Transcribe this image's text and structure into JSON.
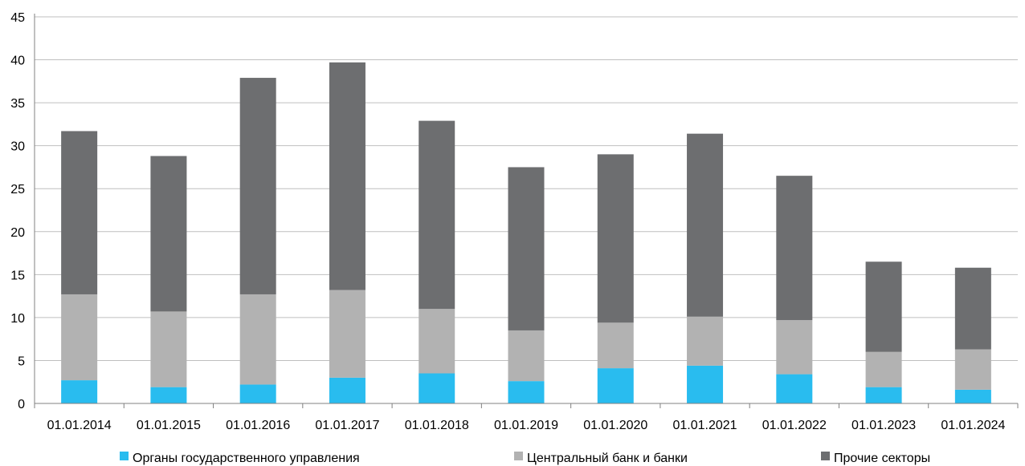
{
  "chart_data": {
    "type": "bar",
    "stacked": true,
    "title": "",
    "xlabel": "",
    "ylabel": "",
    "ylim": [
      0,
      45
    ],
    "y_ticks": [
      0,
      5,
      10,
      15,
      20,
      25,
      30,
      35,
      40,
      45
    ],
    "grid": true,
    "legend_position": "bottom",
    "categories": [
      "01.01.2014",
      "01.01.2015",
      "01.01.2016",
      "01.01.2017",
      "01.01.2018",
      "01.01.2019",
      "01.01.2020",
      "01.01.2021",
      "01.01.2022",
      "01.01.2023",
      "01.01.2024"
    ],
    "series": [
      {
        "name": "Органы государственного управления",
        "color": "#29BCEF",
        "values": [
          2.7,
          1.9,
          2.2,
          3.0,
          3.5,
          2.6,
          4.1,
          4.4,
          3.4,
          1.9,
          1.6
        ]
      },
      {
        "name": "Центральный банк и банки",
        "color": "#B2B2B2",
        "values": [
          10.0,
          8.8,
          10.5,
          10.2,
          7.5,
          5.9,
          5.3,
          5.7,
          6.3,
          4.1,
          4.7
        ]
      },
      {
        "name": "Прочие секторы",
        "color": "#6D6E70",
        "values": [
          19.0,
          18.1,
          25.2,
          26.5,
          21.9,
          19.0,
          19.6,
          21.3,
          16.8,
          10.5,
          9.5
        ]
      }
    ]
  }
}
